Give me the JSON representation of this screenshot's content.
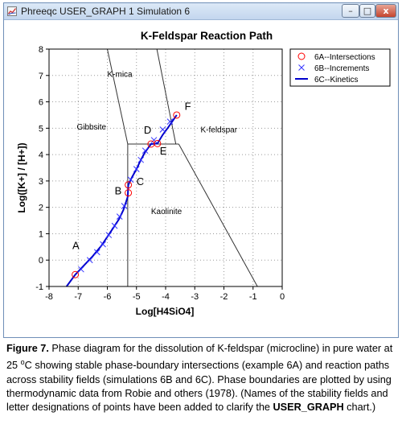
{
  "window": {
    "title": "Phreeqc USER_GRAPH 1 Simulation 6",
    "minimize_glyph": "–",
    "maximize_glyph": "□",
    "close_glyph": "x"
  },
  "chart_data": {
    "type": "scatter",
    "title": "K-Feldspar Reaction Path",
    "xlabel": "Log[H4SiO4]",
    "ylabel": "Log([K+] / [H+])",
    "xlim": [
      -8,
      0
    ],
    "ylim": [
      -1,
      8
    ],
    "xticks": [
      "-8",
      "-7",
      "-6",
      "-5",
      "-4",
      "-3",
      "-2",
      "-1",
      "0"
    ],
    "yticks": [
      "-1",
      "0",
      "1",
      "2",
      "3",
      "4",
      "5",
      "6",
      "7",
      "8"
    ],
    "grid": true,
    "legend_position": "top-right",
    "legend": [
      {
        "label": "6A--Intersections",
        "color": "#ff0000",
        "marker": "circle"
      },
      {
        "label": "6B--Increments",
        "color": "#3333ff",
        "marker": "x"
      },
      {
        "label": "6C--Kinetics",
        "color": "#0000cc",
        "marker": "line"
      }
    ],
    "series": [
      {
        "name": "6A--Intersections",
        "x": [
          -7.1,
          -5.28,
          -5.28,
          -4.5,
          -4.28,
          -3.62
        ],
        "y": [
          -0.55,
          2.55,
          2.85,
          4.4,
          4.42,
          5.5
        ]
      },
      {
        "name": "6B--Increments",
        "x": [
          -6.9,
          -6.6,
          -6.35,
          -6.15,
          -5.95,
          -5.75,
          -5.58,
          -5.42,
          -5.2,
          -5.0,
          -4.85,
          -4.7,
          -4.4,
          -4.1,
          -3.85
        ],
        "y": [
          -0.35,
          0.0,
          0.3,
          0.6,
          0.95,
          1.3,
          1.65,
          2.05,
          3.05,
          3.45,
          3.8,
          4.15,
          4.55,
          4.95,
          5.25
        ]
      },
      {
        "name": "6C--Kinetics",
        "x": [
          -7.4,
          -7.1,
          -6.8,
          -6.5,
          -6.2,
          -5.9,
          -5.6,
          -5.45,
          -5.3,
          -5.28,
          -5.15,
          -5.0,
          -4.85,
          -4.7,
          -4.5,
          -4.28,
          -4.1,
          -3.9,
          -3.62
        ],
        "y": [
          -1.0,
          -0.55,
          -0.2,
          0.15,
          0.55,
          1.05,
          1.55,
          1.9,
          2.4,
          2.85,
          3.15,
          3.45,
          3.8,
          4.1,
          4.4,
          4.42,
          4.75,
          5.05,
          5.5
        ]
      }
    ],
    "phase_boundaries": [
      {
        "x": [
          -5.3,
          -5.3
        ],
        "y": [
          -1,
          4.4
        ]
      },
      {
        "x": [
          -5.3,
          -3.55
        ],
        "y": [
          4.4,
          4.4
        ]
      },
      {
        "x": [
          -5.3,
          -6.0
        ],
        "y": [
          4.4,
          8
        ]
      },
      {
        "x": [
          -4.3,
          -3.65
        ],
        "y": [
          8,
          4.4
        ]
      },
      {
        "x": [
          -3.55,
          -0.85
        ],
        "y": [
          4.4,
          -1
        ]
      }
    ],
    "field_labels": [
      {
        "text": "K-mica",
        "x": -6.0,
        "y": 6.95
      },
      {
        "text": "Gibbsite",
        "x": -7.05,
        "y": 4.95
      },
      {
        "text": "K-feldspar",
        "x": -2.8,
        "y": 4.85
      },
      {
        "text": "Kaolinite",
        "x": -4.5,
        "y": 1.75
      }
    ],
    "point_labels": [
      {
        "text": "A",
        "x": -7.2,
        "y": 0.42
      },
      {
        "text": "B",
        "x": -5.75,
        "y": 2.5
      },
      {
        "text": "C",
        "x": -5.0,
        "y": 2.85
      },
      {
        "text": "D",
        "x": -4.75,
        "y": 4.8
      },
      {
        "text": "E",
        "x": -4.2,
        "y": 4.0
      },
      {
        "text": "F",
        "x": -3.35,
        "y": 5.7
      }
    ]
  },
  "caption": {
    "label": "Figure 7.",
    "part1": " Phase diagram for the dissolution of K-feldspar (microcline) in pure water at 25 ",
    "degree": "o",
    "part2": "C showing stable phase-boundary intersections (example 6A) and reaction paths across stability fields (simulations 6B and 6C). Phase boundaries are plotted by using thermodynamic data from Robie and others (1978). (Names of the stability fields and letter designations of points have been added to clarify the ",
    "bold_term": "USER_GRAPH",
    "part3": " chart.)"
  }
}
